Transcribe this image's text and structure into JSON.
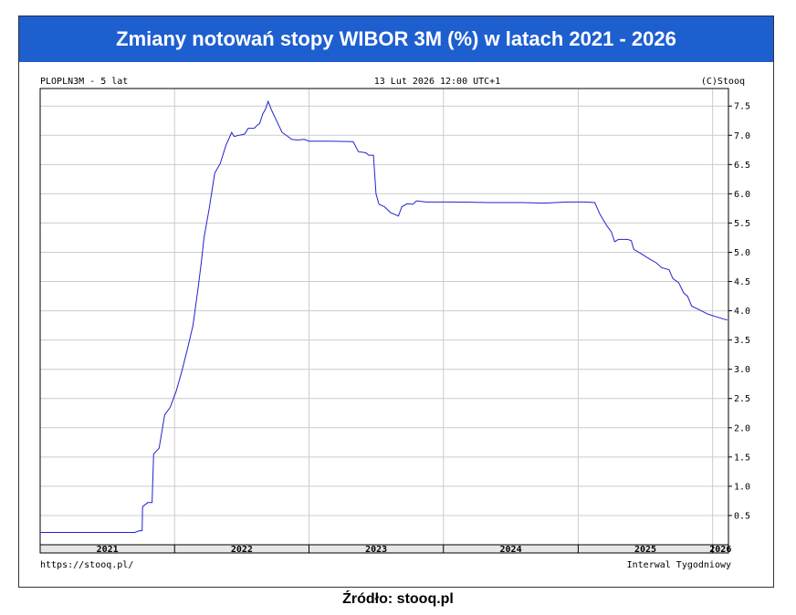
{
  "title": "Zmiany notowań stopy WIBOR 3M (%) w latach 2021 - 2026",
  "source_caption": "Źródło: stooq.pl",
  "header": {
    "left": "PLOPLN3M - 5 lat",
    "center": "13 Lut 2026 12:00 UTC+1",
    "right": "(C)Stooq"
  },
  "footer": {
    "left": "https://stooq.pl/",
    "right": "Interwal Tygodniowy"
  },
  "colors": {
    "title_bg": "#1e5fd0",
    "line": "#2222cc",
    "grid": "#cccccc"
  },
  "chart_data": {
    "type": "line",
    "x_axis_kind": "date",
    "xlim": [
      "2021-01-01",
      "2026-02-13"
    ],
    "ylim": [
      0,
      7.8
    ],
    "y_ticks": [
      0.5,
      1.0,
      1.5,
      2.0,
      2.5,
      3.0,
      3.5,
      4.0,
      4.5,
      5.0,
      5.5,
      6.0,
      6.5,
      7.0,
      7.5
    ],
    "y_tick_labels": [
      "0.5",
      "1.0",
      "1.5",
      "2.0",
      "2.5",
      "3.0",
      "3.5",
      "4.0",
      "4.5",
      "5.0",
      "5.5",
      "6.0",
      "6.5",
      "7.0",
      "7.5"
    ],
    "year_labels": [
      "2021",
      "2022",
      "2023",
      "2024",
      "2025",
      "2026"
    ],
    "grid": true,
    "series": [
      {
        "points": [
          [
            "2021-01-01",
            0.21
          ],
          [
            "2021-03-01",
            0.21
          ],
          [
            "2021-06-01",
            0.21
          ],
          [
            "2021-09-15",
            0.21
          ],
          [
            "2021-09-28",
            0.24
          ],
          [
            "2021-10-05",
            0.24
          ],
          [
            "2021-10-06",
            0.65
          ],
          [
            "2021-10-20",
            0.72
          ],
          [
            "2021-11-01",
            0.72
          ],
          [
            "2021-11-05",
            1.55
          ],
          [
            "2021-11-20",
            1.65
          ],
          [
            "2021-12-05",
            2.22
          ],
          [
            "2021-12-20",
            2.35
          ],
          [
            "2022-01-05",
            2.62
          ],
          [
            "2022-01-20",
            2.95
          ],
          [
            "2022-02-05",
            3.35
          ],
          [
            "2022-02-20",
            3.75
          ],
          [
            "2022-03-05",
            4.35
          ],
          [
            "2022-03-15",
            4.85
          ],
          [
            "2022-03-22",
            5.25
          ],
          [
            "2022-04-05",
            5.75
          ],
          [
            "2022-04-20",
            6.35
          ],
          [
            "2022-05-05",
            6.52
          ],
          [
            "2022-05-20",
            6.82
          ],
          [
            "2022-06-05",
            7.05
          ],
          [
            "2022-06-12",
            6.98
          ],
          [
            "2022-06-25",
            7.0
          ],
          [
            "2022-07-10",
            7.02
          ],
          [
            "2022-07-20",
            7.12
          ],
          [
            "2022-08-05",
            7.12
          ],
          [
            "2022-08-15",
            7.18
          ],
          [
            "2022-08-20",
            7.2
          ],
          [
            "2022-08-28",
            7.36
          ],
          [
            "2022-09-05",
            7.45
          ],
          [
            "2022-09-12",
            7.58
          ],
          [
            "2022-09-22",
            7.42
          ],
          [
            "2022-10-05",
            7.25
          ],
          [
            "2022-10-20",
            7.05
          ],
          [
            "2022-11-05",
            6.98
          ],
          [
            "2022-11-15",
            6.93
          ],
          [
            "2022-12-01",
            6.92
          ],
          [
            "2022-12-20",
            6.93
          ],
          [
            "2023-01-01",
            6.9
          ],
          [
            "2023-03-01",
            6.9
          ],
          [
            "2023-05-01",
            6.89
          ],
          [
            "2023-05-15",
            6.72
          ],
          [
            "2023-06-05",
            6.7
          ],
          [
            "2023-06-12",
            6.66
          ],
          [
            "2023-06-25",
            6.66
          ],
          [
            "2023-07-02",
            6.0
          ],
          [
            "2023-07-10",
            5.82
          ],
          [
            "2023-07-25",
            5.78
          ],
          [
            "2023-08-10",
            5.68
          ],
          [
            "2023-09-01",
            5.62
          ],
          [
            "2023-09-10",
            5.78
          ],
          [
            "2023-09-25",
            5.83
          ],
          [
            "2023-10-10",
            5.82
          ],
          [
            "2023-10-20",
            5.88
          ],
          [
            "2023-11-15",
            5.86
          ],
          [
            "2023-12-15",
            5.86
          ],
          [
            "2024-02-01",
            5.86
          ],
          [
            "2024-05-01",
            5.85
          ],
          [
            "2024-08-01",
            5.85
          ],
          [
            "2024-10-01",
            5.84
          ],
          [
            "2024-12-01",
            5.86
          ],
          [
            "2025-01-20",
            5.86
          ],
          [
            "2025-02-15",
            5.85
          ],
          [
            "2025-03-01",
            5.65
          ],
          [
            "2025-03-20",
            5.45
          ],
          [
            "2025-04-01",
            5.35
          ],
          [
            "2025-04-10",
            5.18
          ],
          [
            "2025-04-20",
            5.22
          ],
          [
            "2025-05-15",
            5.22
          ],
          [
            "2025-05-25",
            5.2
          ],
          [
            "2025-06-01",
            5.05
          ],
          [
            "2025-06-20",
            4.98
          ],
          [
            "2025-07-15",
            4.88
          ],
          [
            "2025-08-01",
            4.82
          ],
          [
            "2025-08-15",
            4.74
          ],
          [
            "2025-09-05",
            4.7
          ],
          [
            "2025-09-15",
            4.55
          ],
          [
            "2025-10-01",
            4.48
          ],
          [
            "2025-10-15",
            4.3
          ],
          [
            "2025-10-25",
            4.25
          ],
          [
            "2025-11-05",
            4.08
          ],
          [
            "2025-11-25",
            4.02
          ],
          [
            "2025-12-20",
            3.94
          ],
          [
            "2026-01-20",
            3.88
          ],
          [
            "2026-02-10",
            3.84
          ]
        ]
      }
    ]
  }
}
